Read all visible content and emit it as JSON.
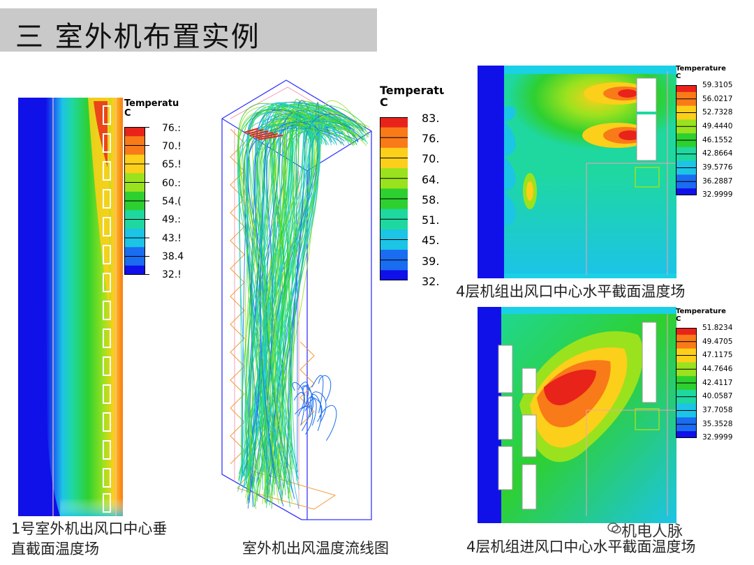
{
  "title": "三  室外机布置实例",
  "legend_title_p1": "Temperatu\nC",
  "legend_title_p2": "Temperatu\nC",
  "legend_title_p3": "Temperature\nC",
  "legend_title_p4": "Temperature\nC",
  "panel1": {
    "caption": "1号室外机出风口中心垂\n直截面温度场",
    "ticks": [
      "76.:",
      "70.!",
      "65.!",
      "60.:",
      "54.(",
      "49.:",
      "43.!",
      "38.4",
      "32.!"
    ]
  },
  "panel2": {
    "caption": "室外机出风温度流线图",
    "ticks": [
      "83.",
      "76.",
      "70.",
      "64.",
      "58.",
      "51.",
      "45.",
      "39.",
      "32."
    ]
  },
  "panel3": {
    "caption": "4层机组出风口中心水平截面温度场",
    "ticks": [
      "59.3105",
      "56.0217",
      "52.7328",
      "49.4440",
      "46.1552",
      "42.8664",
      "39.5776",
      "36.2887",
      "32.9999"
    ]
  },
  "panel4": {
    "caption": "4层机组进风口中心水平截面温度场",
    "ticks": [
      "51.8234",
      "49.4705",
      "47.1175",
      "44.7646",
      "42.4117",
      "40.0587",
      "37.7058",
      "35.3528",
      "32.9999"
    ]
  },
  "watermark": "机电人脉",
  "colors": {
    "title_bar": "#c9c9c9",
    "scale": [
      "#e8231a",
      "#f97a18",
      "#fccf1a",
      "#9ae21e",
      "#2ed030",
      "#1ed8a0",
      "#1cc4e6",
      "#1a6cf0",
      "#1010e8"
    ]
  }
}
